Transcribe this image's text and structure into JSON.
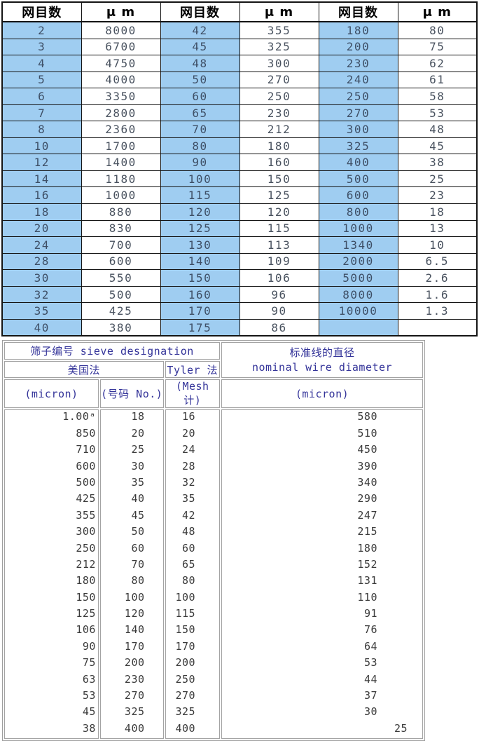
{
  "colors": {
    "mesh_column_bg": "#9fcdf1",
    "top_table_border": "#141414",
    "bottom_table_border": "#9e9e9e",
    "bottom_header_text": "#333399",
    "data_text": "#3b3b3b"
  },
  "top_table": {
    "headers": [
      "网目数",
      "μ m",
      "网目数",
      "μ m",
      "网目数",
      "μ m"
    ],
    "rows": [
      [
        "2",
        "8000",
        "42",
        "355",
        "180",
        "80"
      ],
      [
        "3",
        "6700",
        "45",
        "325",
        "200",
        "75"
      ],
      [
        "4",
        "4750",
        "48",
        "300",
        "230",
        "62"
      ],
      [
        "5",
        "4000",
        "50",
        "270",
        "240",
        "61"
      ],
      [
        "6",
        "3350",
        "60",
        "250",
        "250",
        "58"
      ],
      [
        "7",
        "2800",
        "65",
        "230",
        "270",
        "53"
      ],
      [
        "8",
        "2360",
        "70",
        "212",
        "300",
        "48"
      ],
      [
        "10",
        "1700",
        "80",
        "180",
        "325",
        "45"
      ],
      [
        "12",
        "1400",
        "90",
        "160",
        "400",
        "38"
      ],
      [
        "14",
        "1180",
        "100",
        "150",
        "500",
        "25"
      ],
      [
        "16",
        "1000",
        "115",
        "125",
        "600",
        "23"
      ],
      [
        "18",
        "880",
        "120",
        "120",
        "800",
        "18"
      ],
      [
        "20",
        "830",
        "125",
        "115",
        "1000",
        "13"
      ],
      [
        "24",
        "700",
        "130",
        "113",
        "1340",
        "10"
      ],
      [
        "28",
        "600",
        "140",
        "109",
        "2000",
        "6.5"
      ],
      [
        "30",
        "550",
        "150",
        "106",
        "5000",
        "2.6"
      ],
      [
        "32",
        "500",
        "160",
        "96",
        "8000",
        "1.6"
      ],
      [
        "35",
        "425",
        "170",
        "90",
        "10000",
        "1.3"
      ],
      [
        "40",
        "380",
        "175",
        "86",
        "",
        ""
      ]
    ]
  },
  "bottom_table": {
    "sieve_designation_title": "筛子编号 sieve designation",
    "wire_title_cn": "标准线的直径",
    "wire_title_en": "nominal wire diameter",
    "us_method": "美国法",
    "tyler_method": "Tyler 法",
    "col_headers": [
      "(micron)",
      "(号码 No.)",
      "(Mesh 计)",
      "(micron)"
    ],
    "columns": {
      "opening_micron": [
        "1.00ᵃ",
        "850",
        "710",
        "600",
        "500",
        "425",
        "355",
        "300",
        "250",
        "212",
        "180",
        "150",
        "125",
        "106",
        "90",
        "75",
        "63",
        "53",
        "45",
        "38"
      ],
      "us_no": [
        "18",
        "20",
        "25",
        "30",
        "35",
        "40",
        "45",
        "50",
        "60",
        "70",
        "80",
        "100",
        "120",
        "140",
        "170",
        "200",
        "230",
        "270",
        "325",
        "400"
      ],
      "tyler_mesh": [
        "16",
        "20",
        "24",
        "28",
        "32",
        "35",
        "42",
        "48",
        "60",
        "65",
        "80",
        "100",
        "115",
        "150",
        "170",
        "200",
        "250",
        "270",
        "325",
        "400"
      ],
      "wire_micron": [
        "580",
        "510",
        "450",
        "390",
        "340",
        "290",
        "247",
        "215",
        "180",
        "152",
        "131",
        "110",
        "91",
        "76",
        "64",
        "53",
        "44",
        "37",
        "30",
        "25"
      ]
    }
  }
}
